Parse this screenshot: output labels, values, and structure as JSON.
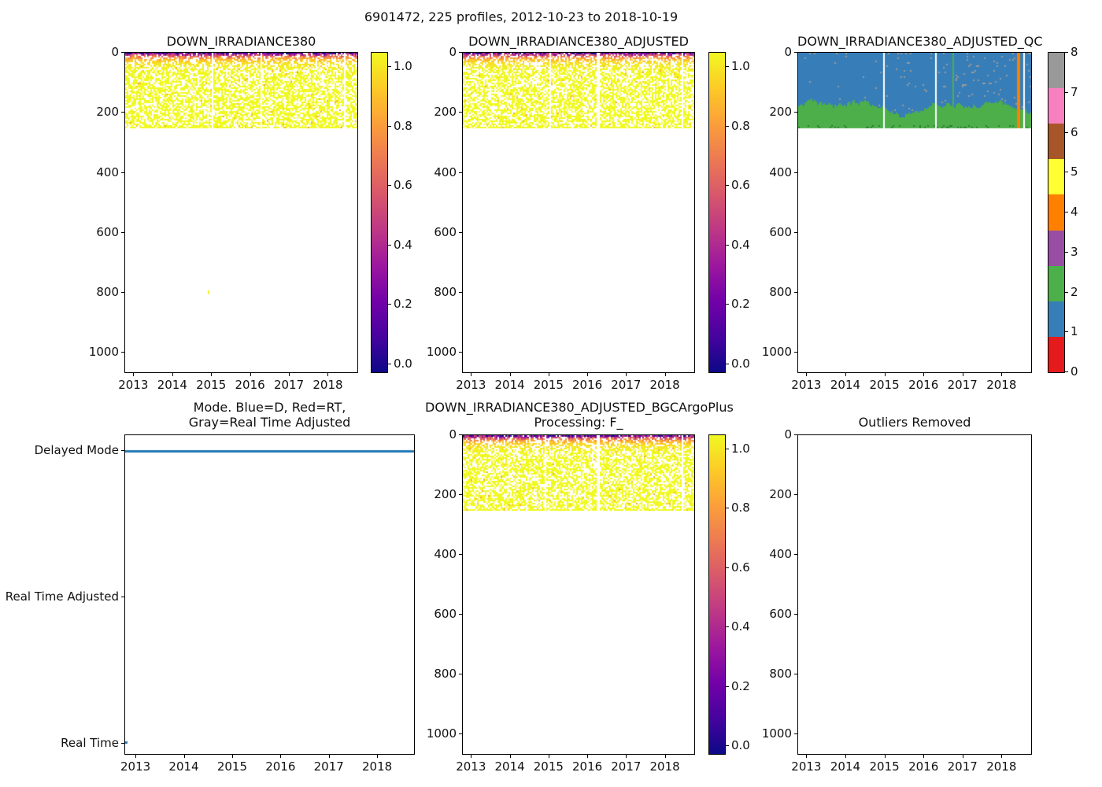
{
  "figure": {
    "suptitle": "6901472, 225 profiles, 2012-10-23 to 2018-10-19",
    "background": "#ffffff"
  },
  "colors": {
    "axis": "#000000",
    "plasma_stops_0_to_1": [
      "#0d0887",
      "#46039f",
      "#7201a8",
      "#9c179e",
      "#bd3786",
      "#d8576b",
      "#ed7953",
      "#fb9f3a",
      "#fdca26",
      "#f0f921"
    ],
    "set1_qc_0_to_8": [
      "#e41a1c",
      "#377eb8",
      "#4daf4a",
      "#984ea3",
      "#ff7f00",
      "#ffff33",
      "#a65628",
      "#f781bf",
      "#999999"
    ],
    "mode_line_blue": "#1f77b4",
    "qc_blue": "#377eb8",
    "qc_green": "#4daf4a",
    "qc_orange": "#ff7f00",
    "qc_speck_gray": "#999999",
    "outlier_dot_yellow": "#f2f22b"
  },
  "chart_data": [
    {
      "id": "down-irradiance380",
      "type": "heatmap",
      "title": "DOWN_IRRADIANCE380",
      "x": {
        "range": [
          2012.77,
          2018.78
        ],
        "ticks": [
          2013,
          2014,
          2015,
          2016,
          2017,
          2018
        ]
      },
      "y": {
        "range": [
          0,
          1070
        ],
        "inverted": true,
        "ticks": [
          0,
          200,
          400,
          600,
          800,
          1000
        ],
        "meaning": "pressure/depth (dbar)"
      },
      "data": {
        "profile_span_depth": [
          0,
          250
        ],
        "value_model": "irradiance decays ~exp(-depth/13); ~1.0 (dark navy/purple) at surface, <0.05 (yellow) below 60 dbar",
        "missing_profile_gap_fracs": [
          [
            0.368,
            0.376
          ],
          [
            0.578,
            0.586
          ],
          [
            0.942,
            0.948
          ]
        ],
        "bottom_dense_line_depth": [
          245,
          252
        ],
        "outlier_point": {
          "x_frac": 0.355,
          "depth": 795
        },
        "seed": 11
      },
      "colorbar": {
        "cmap": "plasma_r",
        "tick_labels": [
          "1.0",
          "0.8",
          "0.6",
          "0.4",
          "0.2",
          "0.0"
        ],
        "range": [
          0.0,
          1.05
        ]
      }
    },
    {
      "id": "down-irradiance380-adjusted",
      "type": "heatmap",
      "title": "DOWN_IRRADIANCE380_ADJUSTED",
      "x": {
        "range": [
          2012.77,
          2018.78
        ],
        "ticks": [
          2013,
          2014,
          2015,
          2016,
          2017,
          2018
        ]
      },
      "y": {
        "range": [
          0,
          1070
        ],
        "inverted": true,
        "ticks": [
          0,
          200,
          400,
          600,
          800,
          1000
        ]
      },
      "data": {
        "profile_span_depth": [
          0,
          250
        ],
        "value_model": "same as DOWN_IRRADIANCE380",
        "missing_profile_gap_fracs": [
          [
            0.368,
            0.376
          ],
          [
            0.578,
            0.586
          ],
          [
            0.942,
            0.948
          ]
        ],
        "bottom_dense_line_depth": [
          245,
          252
        ],
        "outlier_point": null,
        "seed": 22
      },
      "colorbar": {
        "cmap": "plasma_r",
        "tick_labels": [
          "1.0",
          "0.8",
          "0.6",
          "0.4",
          "0.2",
          "0.0"
        ],
        "range": [
          0.0,
          1.05
        ]
      }
    },
    {
      "id": "down-irradiance380-adjusted-qc",
      "type": "heatmap",
      "title": "DOWN_IRRADIANCE380_ADJUSTED_QC",
      "x": {
        "range": [
          2012.77,
          2018.78
        ],
        "ticks": [
          2013,
          2014,
          2015,
          2016,
          2017,
          2018
        ]
      },
      "y": {
        "range": [
          0,
          1070
        ],
        "inverted": true,
        "ticks": [
          0,
          200,
          400,
          600,
          800,
          1000
        ]
      },
      "data": {
        "qc1_blue_span_depth": [
          0,
          "boundary 140-215"
        ],
        "qc2_green_span_depth": [
          "boundary 140-215",
          250
        ],
        "qc8_gray_specks": "sparse, denser toward right half and along surface",
        "green_column_frac": 0.657,
        "orange_column_frac": 0.936,
        "missing_profile_gap_fracs": [
          [
            0.362,
            0.368
          ],
          [
            0.583,
            0.589
          ],
          [
            0.964,
            0.97
          ]
        ],
        "seed": 33
      },
      "colorbar": {
        "cmap": "set1_discrete",
        "tick_labels": [
          "8",
          "7",
          "6",
          "5",
          "4",
          "3",
          "2",
          "1",
          "0"
        ],
        "range": [
          0,
          8
        ]
      }
    },
    {
      "id": "mode",
      "type": "line",
      "title": "Mode. Blue=D, Red=RT,",
      "title2": "Gray=Real Time Adjusted",
      "x": {
        "range": [
          2012.77,
          2018.78
        ],
        "ticks": [
          2013,
          2014,
          2015,
          2016,
          2017,
          2018
        ]
      },
      "y_categories": [
        "Delayed Mode",
        "Real Time Adjusted",
        "Real Time"
      ],
      "data": {
        "delayed_mode_line": {
          "category": "Delayed Mode",
          "x_span_frac": [
            0.0,
            1.0
          ]
        },
        "real_time_point": {
          "category": "Real Time",
          "x_frac": 0.0
        }
      }
    },
    {
      "id": "down-irradiance380-adjusted-bgcargoplus",
      "type": "heatmap",
      "title": "DOWN_IRRADIANCE380_ADJUSTED_BGCArgoPlus",
      "title2": "Processing: F_",
      "x": {
        "range": [
          2012.77,
          2018.78
        ],
        "ticks": [
          2013,
          2014,
          2015,
          2016,
          2017,
          2018
        ]
      },
      "y": {
        "range": [
          0,
          1070
        ],
        "inverted": true,
        "ticks": [
          0,
          200,
          400,
          600,
          800,
          1000
        ]
      },
      "data": {
        "profile_span_depth": [
          0,
          250
        ],
        "value_model": "same as DOWN_IRRADIANCE380",
        "missing_profile_gap_fracs": [
          [
            0.352,
            0.36
          ],
          [
            0.578,
            0.586
          ],
          [
            0.942,
            0.948
          ]
        ],
        "bottom_dense_line_depth": [
          245,
          252
        ],
        "outlier_point": null,
        "seed": 55
      },
      "colorbar": {
        "cmap": "plasma_r",
        "tick_labels": [
          "1.0",
          "0.8",
          "0.6",
          "0.4",
          "0.2",
          "0.0"
        ],
        "range": [
          0.0,
          1.05
        ]
      }
    },
    {
      "id": "outliers-removed",
      "type": "heatmap",
      "title": "Outliers Removed",
      "x": {
        "range": [
          2012.77,
          2018.78
        ],
        "ticks": [
          2013,
          2014,
          2015,
          2016,
          2017,
          2018
        ]
      },
      "y": {
        "range": [
          0,
          1070
        ],
        "inverted": true,
        "ticks": [
          0,
          200,
          400,
          600,
          800,
          1000
        ]
      },
      "data": {
        "empty": true
      }
    }
  ]
}
